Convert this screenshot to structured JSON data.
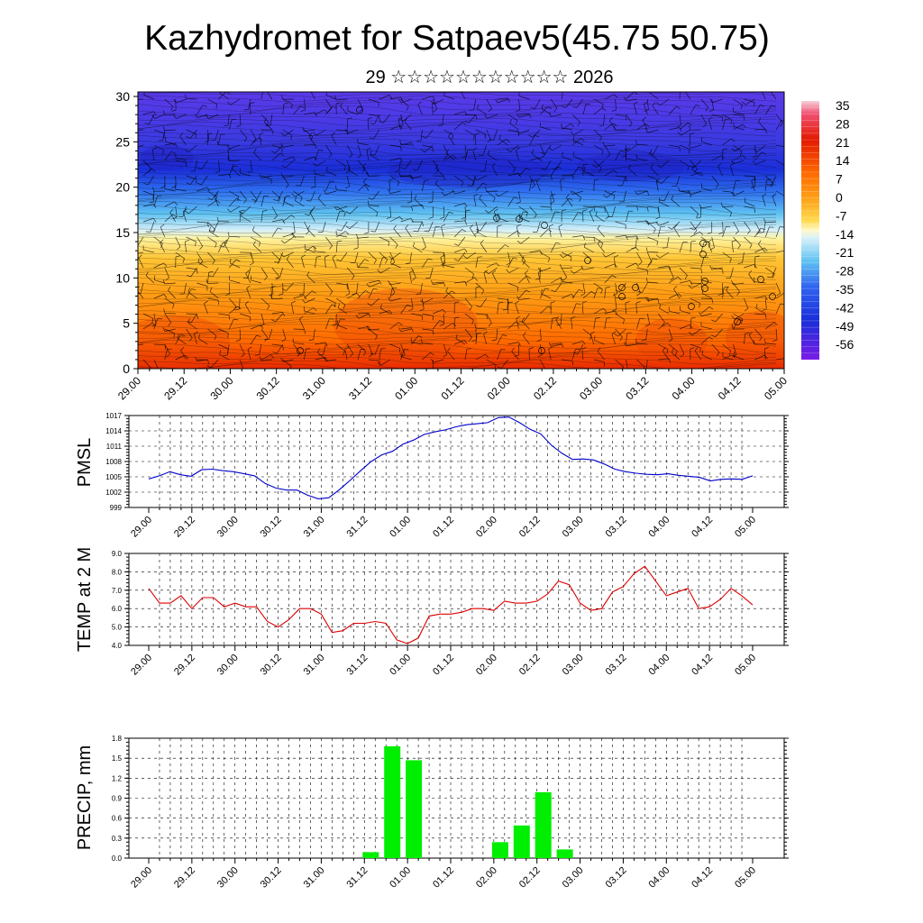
{
  "header": {
    "title": "Kazhydromet for Satpaev5(45.75 50.75)",
    "subtitle": "29 ☆☆☆☆☆☆☆☆☆☆☆ 2026"
  },
  "time_labels": [
    "29.00",
    "29.12",
    "30.00",
    "30.12",
    "31.00",
    "31.12",
    "01.00",
    "01.12",
    "02.00",
    "02.12",
    "03.00",
    "03.12",
    "04.00",
    "04.12",
    "05.00"
  ],
  "chart_data": [
    {
      "type": "heatmap",
      "title": "Kazhydromet for Satpaev5(45.75 50.75)",
      "subtitle": "29 ☆☆☆☆☆☆☆☆☆☆☆ 2026",
      "y_ticks": [
        "0",
        "5",
        "10",
        "15",
        "20",
        "25",
        "30"
      ],
      "ylim": [
        0,
        30.5
      ],
      "colorbar_labels": [
        "35",
        "28",
        "21",
        "14",
        "7",
        "0",
        "-7",
        "-14",
        "-21",
        "-28",
        "-35",
        "-42",
        "-49",
        "-56"
      ],
      "colors": {
        "min": "#7a1de6",
        "deep_blue": "#1a2ed8",
        "blue": "#2f63f0",
        "light_blue": "#5fc2f2",
        "pale": "#fff9c8",
        "yellow": "#ffd84a",
        "orange": "#ffa31a",
        "dark_orange": "#ff6a00",
        "red": "#e31a00",
        "max": "#f3b8c8"
      }
    },
    {
      "type": "line",
      "ylabel": "PMSL",
      "ylim": [
        999,
        1017
      ],
      "y_ticks": [
        "999",
        "1002",
        "1005",
        "1008",
        "1011",
        "1014",
        "1017"
      ],
      "series": [
        {
          "color": "#0000cc",
          "values": [
            1004.6,
            1005.2,
            1006,
            1005.4,
            1005.1,
            1006.4,
            1006.5,
            1006.2,
            1006,
            1005.6,
            1005.2,
            1003.7,
            1002.8,
            1002.4,
            1002.4,
            1001.4,
            1000.7,
            1000.9,
            1002.5,
            1004.3,
            1006.2,
            1008,
            1009.3,
            1010,
            1011.4,
            1012.2,
            1013.3,
            1013.8,
            1014.2,
            1014.8,
            1015.2,
            1015.4,
            1015.6,
            1016.6,
            1016.7,
            1015.6,
            1014.3,
            1013.4,
            1011.2,
            1009.6,
            1008.4,
            1008.5,
            1008.3,
            1007.5,
            1006.5,
            1006,
            1005.7,
            1005.5,
            1005.4,
            1005.6,
            1005.3,
            1005.1,
            1004.9,
            1004.2,
            1004.5,
            1004.6,
            1004.5,
            1005.2
          ]
        }
      ]
    },
    {
      "type": "line",
      "ylabel": "TEMP at 2 M",
      "ylim": [
        4.0,
        9.0
      ],
      "y_ticks": [
        "4.0",
        "5.0",
        "6.0",
        "7.0",
        "8.0",
        "9.0"
      ],
      "series": [
        {
          "color": "#dd0000",
          "values": [
            7.1,
            6.3,
            6.3,
            6.7,
            6.0,
            6.6,
            6.6,
            6.1,
            6.3,
            6.1,
            6.1,
            5.3,
            5.0,
            5.4,
            6.0,
            6.0,
            5.7,
            4.7,
            4.8,
            5.2,
            5.2,
            5.3,
            5.2,
            4.3,
            4.1,
            4.4,
            5.6,
            5.7,
            5.7,
            5.8,
            6.0,
            6.0,
            5.9,
            6.4,
            6.3,
            6.3,
            6.4,
            6.8,
            7.5,
            7.3,
            6.3,
            5.9,
            6.0,
            6.9,
            7.2,
            7.9,
            8.3,
            7.5,
            6.7,
            6.9,
            7.1,
            6.0,
            6.1,
            6.5,
            7.1,
            6.7,
            6.2
          ]
        }
      ]
    },
    {
      "type": "bar",
      "ylabel": "PRECIP, mm",
      "ylim": [
        0,
        1.8
      ],
      "y_ticks": [
        "0.0",
        "0.3",
        "0.6",
        "0.9",
        "1.2",
        "1.5",
        "1.8"
      ],
      "color": "#00ee00",
      "bars": [
        {
          "t": 10,
          "value": 0.09
        },
        {
          "t": 11,
          "value": 1.68
        },
        {
          "t": 12,
          "value": 1.47
        },
        {
          "t": 16,
          "value": 0.24
        },
        {
          "t": 17,
          "value": 0.49
        },
        {
          "t": 18,
          "value": 0.99
        },
        {
          "t": 19,
          "value": 0.13
        }
      ]
    }
  ]
}
